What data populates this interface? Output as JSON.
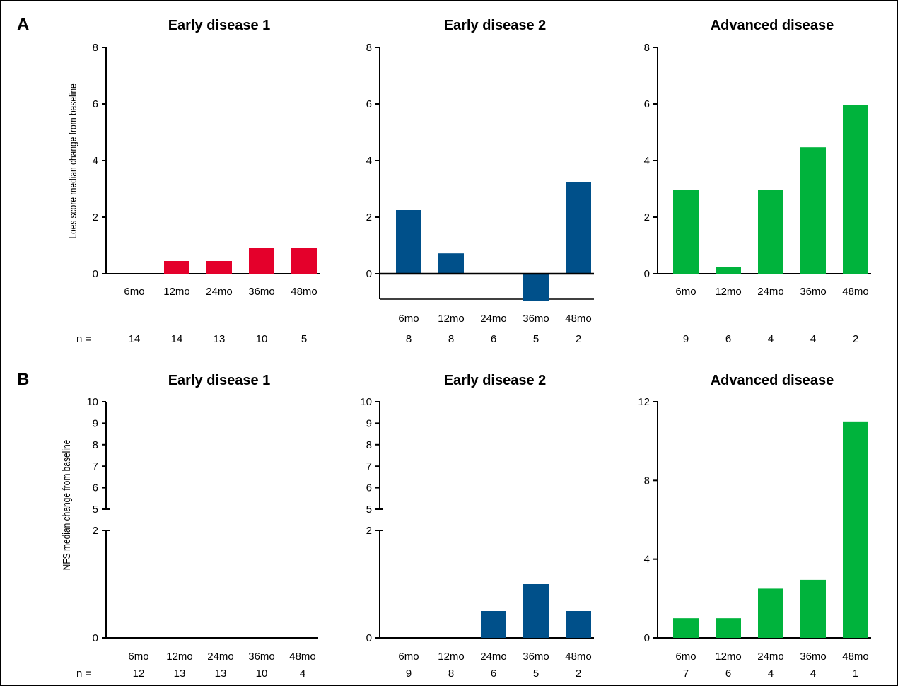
{
  "panels": [
    {
      "letter": "A",
      "ylabel": "Loes score median change from baseline"
    },
    {
      "letter": "B",
      "ylabel": "NFS median change from baseline"
    }
  ],
  "n_prefix": "n =",
  "chart_data": [
    {
      "panel": "A",
      "type": "bar",
      "title": "Early disease 1",
      "categories": [
        "6mo",
        "12mo",
        "24mo",
        "36mo",
        "48mo"
      ],
      "values": [
        0,
        0.45,
        0.45,
        0.92,
        0.92
      ],
      "n": [
        "14",
        "14",
        "13",
        "10",
        "5"
      ],
      "ylim": [
        0,
        8
      ],
      "yticks": [
        0,
        2,
        4,
        6,
        8
      ],
      "color": "#e4002b"
    },
    {
      "panel": "A",
      "type": "bar",
      "title": "Early disease 2",
      "categories": [
        "6mo",
        "12mo",
        "24mo",
        "36mo",
        "48mo"
      ],
      "values": [
        2.25,
        0.72,
        0,
        -0.95,
        3.25
      ],
      "n": [
        "8",
        "8",
        "6",
        "5",
        "2"
      ],
      "ylim": [
        -1,
        8
      ],
      "yticks": [
        0,
        2,
        4,
        6,
        8
      ],
      "color": "#00508a"
    },
    {
      "panel": "A",
      "type": "bar",
      "title": "Advanced disease",
      "categories": [
        "6mo",
        "12mo",
        "24mo",
        "36mo",
        "48mo"
      ],
      "values": [
        2.95,
        0.25,
        2.95,
        4.47,
        5.95
      ],
      "n": [
        "9",
        "6",
        "4",
        "4",
        "2"
      ],
      "ylim": [
        0,
        8
      ],
      "yticks": [
        0,
        2,
        4,
        6,
        8
      ],
      "color": "#00b33c"
    },
    {
      "panel": "B",
      "type": "bar",
      "title": "Early disease 1",
      "categories": [
        "6mo",
        "12mo",
        "24mo",
        "36mo",
        "48mo"
      ],
      "values": [
        0,
        0,
        0,
        0,
        0
      ],
      "n": [
        "12",
        "13",
        "13",
        "10",
        "4"
      ],
      "ylim": [
        0,
        10
      ],
      "yticks": [
        0,
        2,
        5,
        6,
        7,
        8,
        9,
        10
      ],
      "axis_break": [
        2,
        5
      ],
      "color": "#e4002b"
    },
    {
      "panel": "B",
      "type": "bar",
      "title": "Early disease 2",
      "categories": [
        "6mo",
        "12mo",
        "24mo",
        "36mo",
        "48mo"
      ],
      "values": [
        0,
        0,
        0.5,
        1,
        0.5
      ],
      "n": [
        "9",
        "8",
        "6",
        "5",
        "2"
      ],
      "ylim": [
        0,
        10
      ],
      "yticks": [
        0,
        2,
        5,
        6,
        7,
        8,
        9,
        10
      ],
      "axis_break": [
        2,
        5
      ],
      "color": "#00508a"
    },
    {
      "panel": "B",
      "type": "bar",
      "title": "Advanced disease",
      "categories": [
        "6mo",
        "12mo",
        "24mo",
        "36mo",
        "48mo"
      ],
      "values": [
        1,
        1,
        2.5,
        2.95,
        11
      ],
      "n": [
        "7",
        "6",
        "4",
        "4",
        "1"
      ],
      "ylim": [
        0,
        12
      ],
      "yticks": [
        0,
        4,
        8,
        12
      ],
      "color": "#00b33c"
    }
  ]
}
